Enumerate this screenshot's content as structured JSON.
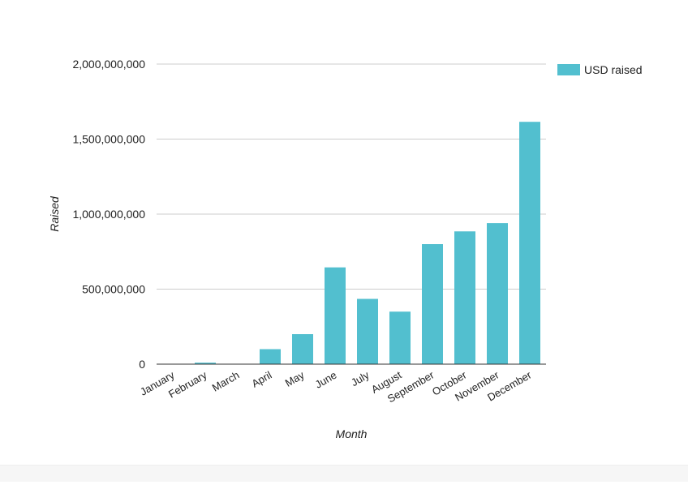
{
  "chart_data": {
    "type": "bar",
    "title": "",
    "xlabel": "Month",
    "ylabel": "Raised",
    "categories": [
      "January",
      "February",
      "March",
      "April",
      "May",
      "June",
      "July",
      "August",
      "September",
      "October",
      "November",
      "December"
    ],
    "series": [
      {
        "name": "USD raised",
        "values": [
          0,
          10000000,
          2000000,
          100000000,
          200000000,
          645000000,
          435000000,
          350000000,
          800000000,
          885000000,
          940000000,
          1615000000
        ]
      }
    ],
    "ylim": [
      0,
      2000000000
    ],
    "yticks": [
      0,
      500000000,
      1000000000,
      1500000000,
      2000000000
    ],
    "ytick_labels": [
      "0",
      "500,000,000",
      "1,000,000,000",
      "1,500,000,000",
      "2,000,000,000"
    ],
    "grid": true,
    "legend_position": "top-right",
    "colors": {
      "bar": "#52bfcf",
      "grid": "#cccccc",
      "axis": "#333333",
      "text": "#222222"
    }
  }
}
